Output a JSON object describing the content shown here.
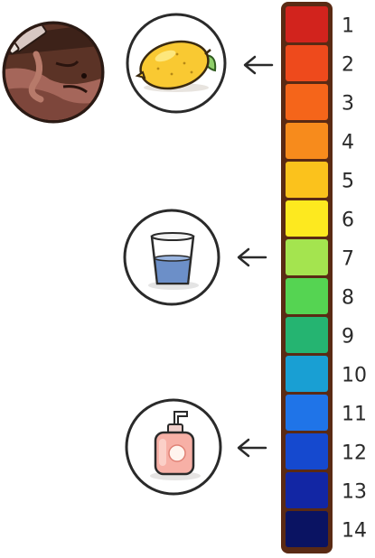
{
  "scale": {
    "levels": [
      {
        "label": "1",
        "color": "#d2231d"
      },
      {
        "label": "2",
        "color": "#ee4a1c"
      },
      {
        "label": "3",
        "color": "#f5651a"
      },
      {
        "label": "4",
        "color": "#f78b1c"
      },
      {
        "label": "5",
        "color": "#fbc21c"
      },
      {
        "label": "6",
        "color": "#fde91f"
      },
      {
        "label": "7",
        "color": "#a4e44f"
      },
      {
        "label": "8",
        "color": "#55d452"
      },
      {
        "label": "9",
        "color": "#25b471"
      },
      {
        "label": "10",
        "color": "#199fd3"
      },
      {
        "label": "11",
        "color": "#1f74e8"
      },
      {
        "label": "12",
        "color": "#1549cf"
      },
      {
        "label": "13",
        "color": "#1226a4"
      },
      {
        "label": "14",
        "color": "#0a1362"
      }
    ],
    "frame_color": "#5a2a14"
  },
  "pointers": [
    {
      "icon": "lemon-icon",
      "level": "2"
    },
    {
      "icon": "glass-of-water-icon",
      "level": "7"
    },
    {
      "icon": "soap-dispenser-icon",
      "level": "12"
    }
  ],
  "extra_icon": "acid-pouring-on-surface-icon"
}
